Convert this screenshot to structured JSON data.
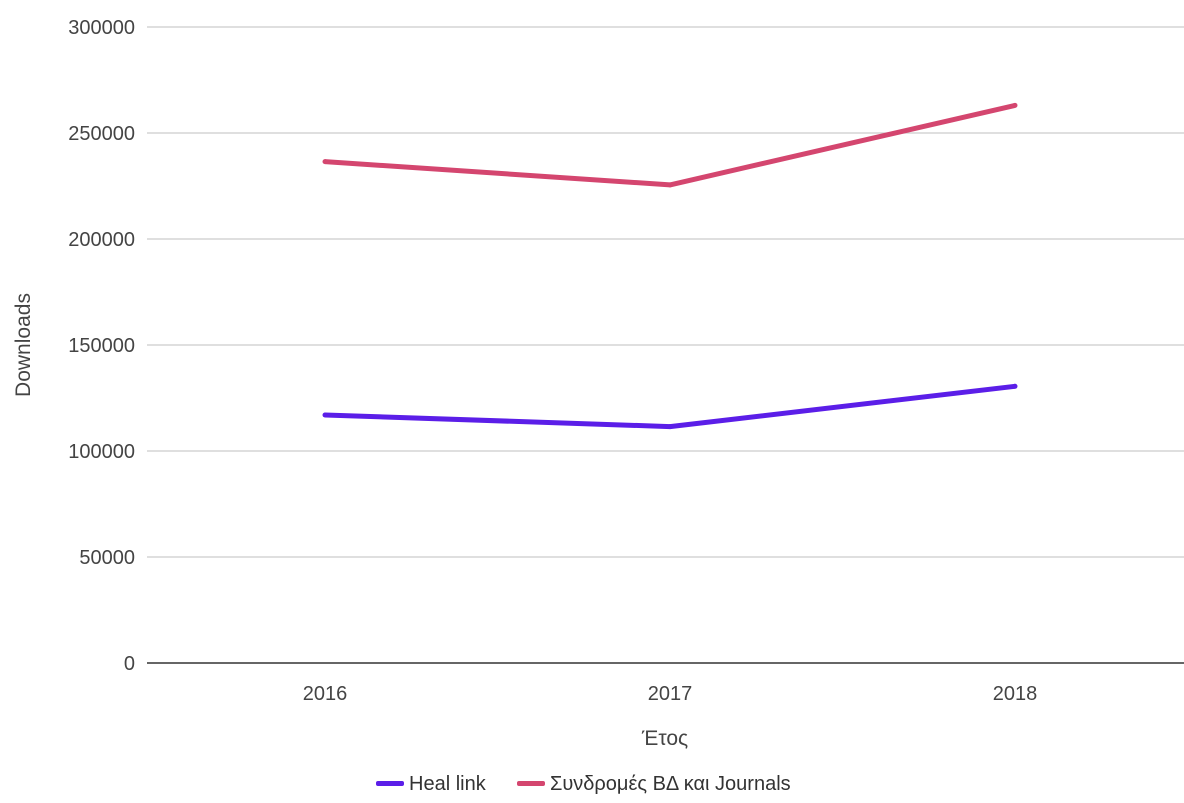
{
  "chart_data": {
    "type": "line",
    "categories": [
      "2016",
      "2017",
      "2018"
    ],
    "series": [
      {
        "name": "Heal link",
        "values": [
          117000,
          111500,
          130500
        ],
        "color": "#5b1ee8"
      },
      {
        "name": "Συνδρομές ΒΔ και Journals",
        "values": [
          236500,
          225500,
          263000
        ],
        "color": "#d4466f"
      }
    ],
    "xlabel": "Έτος",
    "ylabel": "Downloads",
    "ylim": [
      0,
      300000
    ],
    "yticks": [
      0,
      50000,
      100000,
      150000,
      200000,
      250000,
      300000
    ],
    "ytick_labels": [
      "0",
      "50000",
      "100000",
      "150000",
      "200000",
      "250000",
      "300000"
    ],
    "grid": true,
    "legend_position": "bottom"
  }
}
